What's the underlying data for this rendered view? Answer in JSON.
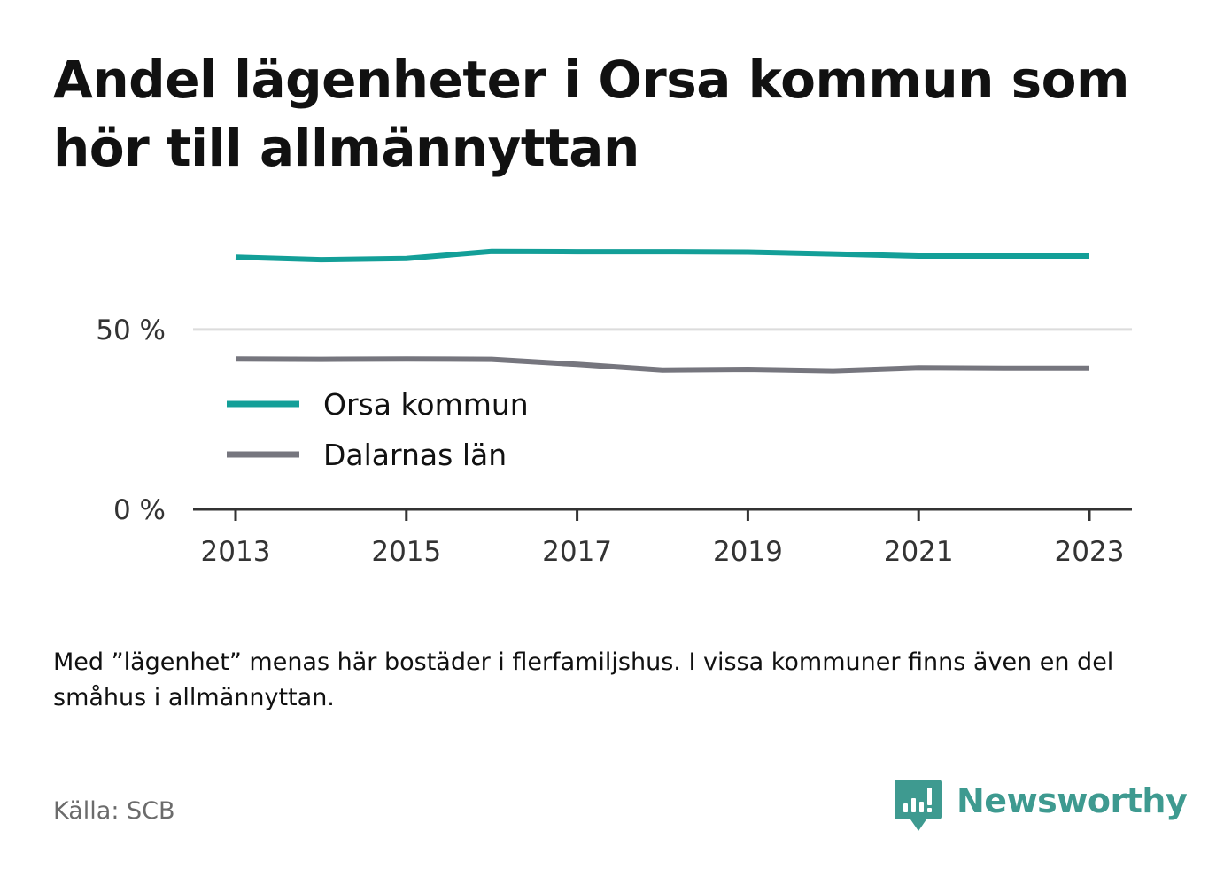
{
  "header": {
    "title": "Andel lägenheter i Orsa kommun som hör till allmännyttan"
  },
  "chart_data": {
    "type": "line",
    "title": "Andel lägenheter i Orsa kommun som hör till allmännyttan",
    "xlabel": "",
    "ylabel": "",
    "x": [
      2013,
      2014,
      2015,
      2016,
      2017,
      2018,
      2019,
      2020,
      2021,
      2022,
      2023
    ],
    "xticks": [
      2013,
      2015,
      2017,
      2019,
      2021,
      2023
    ],
    "yticks": [
      {
        "value": 0,
        "label": "0 %"
      },
      {
        "value": 50,
        "label": "50 %"
      }
    ],
    "ylim": [
      0,
      80
    ],
    "grid": true,
    "legend_position": "inside, below the 50 % gridline",
    "series": [
      {
        "name": "Orsa kommun",
        "color": "#139f98",
        "values": [
          70.1,
          69.4,
          69.7,
          71.7,
          71.6,
          71.6,
          71.5,
          71.0,
          70.4,
          70.4,
          70.4
        ]
      },
      {
        "name": "Dalarnas län",
        "color": "#76767e",
        "values": [
          41.8,
          41.7,
          41.8,
          41.7,
          40.3,
          38.7,
          38.9,
          38.5,
          39.3,
          39.2,
          39.2
        ]
      }
    ]
  },
  "note": "Med ”lägenhet” menas här bostäder i flerfamiljshus. I vissa kommuner finns även en del småhus i allmännyttan.",
  "footer": {
    "source": "Källa: SCB",
    "brand_name": "Newsworthy",
    "brand_color": "#3e9a90",
    "brand_icon": "bar-chart-speech-bubble-icon"
  }
}
